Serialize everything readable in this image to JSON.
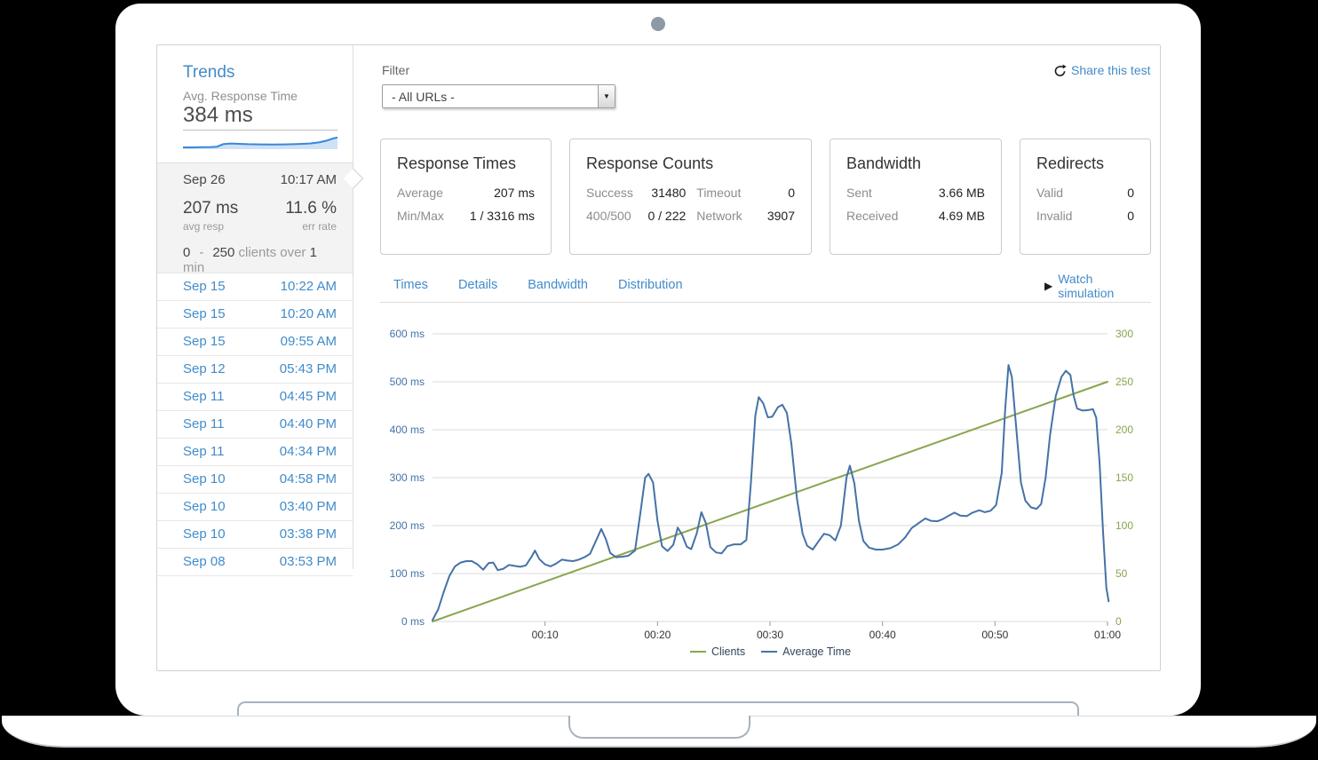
{
  "sidebar": {
    "title": "Trends",
    "metric_label": "Avg. Response Time",
    "metric_value": "384 ms",
    "selected": {
      "date": "Sep 26",
      "time": "10:17 AM",
      "avg_value": "207 ms",
      "avg_label": "avg resp",
      "err_value": "11.6 %",
      "err_label": "err rate",
      "clients_min": "0",
      "clients_dash": "-",
      "clients_max": "250",
      "clients_text": "clients over",
      "clients_num": "1",
      "clients_unit": "min"
    },
    "runs": [
      {
        "date": "Sep 15",
        "time": "10:22 AM"
      },
      {
        "date": "Sep 15",
        "time": "10:20 AM"
      },
      {
        "date": "Sep 15",
        "time": "09:55 AM"
      },
      {
        "date": "Sep 12",
        "time": "05:43 PM"
      },
      {
        "date": "Sep 11",
        "time": "04:45 PM"
      },
      {
        "date": "Sep 11",
        "time": "04:40 PM"
      },
      {
        "date": "Sep 11",
        "time": "04:34 PM"
      },
      {
        "date": "Sep 10",
        "time": "04:58 PM"
      },
      {
        "date": "Sep 10",
        "time": "03:40 PM"
      },
      {
        "date": "Sep 10",
        "time": "03:38 PM"
      },
      {
        "date": "Sep 08",
        "time": "03:53 PM"
      }
    ]
  },
  "header": {
    "filter_label": "Filter",
    "filter_value": "- All URLs -",
    "share_label": "Share this test"
  },
  "cards": {
    "response_times": {
      "title": "Response Times",
      "rows": [
        {
          "label": "Average",
          "value": "207 ms"
        },
        {
          "label": "Min/Max",
          "value": "1 / 3316 ms"
        }
      ]
    },
    "response_counts": {
      "title": "Response Counts",
      "rows": [
        {
          "label": "Success",
          "value": "31480"
        },
        {
          "label": "Timeout",
          "value": "0"
        },
        {
          "label": "400/500",
          "value": "0 / 222"
        },
        {
          "label": "Network",
          "value": "3907"
        }
      ]
    },
    "bandwidth": {
      "title": "Bandwidth",
      "rows": [
        {
          "label": "Sent",
          "value": "3.66 MB"
        },
        {
          "label": "Received",
          "value": "4.69 MB"
        }
      ]
    },
    "redirects": {
      "title": "Redirects",
      "rows": [
        {
          "label": "Valid",
          "value": "0"
        },
        {
          "label": "Invalid",
          "value": "0"
        }
      ]
    }
  },
  "tabs": [
    "Times",
    "Details",
    "Bandwidth",
    "Distribution"
  ],
  "watch_label": "Watch simulation",
  "colors": {
    "link_blue": "#428bca",
    "chart_blue": "#4572a7",
    "chart_green": "#89a54e",
    "grid": "#d9d9d9"
  },
  "sparkline": {
    "color": "#3a87d9",
    "fill": "#cfe1f4",
    "points": [
      [
        0,
        0.8
      ],
      [
        0.06,
        0.8
      ],
      [
        0.12,
        0.79
      ],
      [
        0.18,
        0.78
      ],
      [
        0.22,
        0.76
      ],
      [
        0.26,
        0.62
      ],
      [
        0.31,
        0.58
      ],
      [
        0.36,
        0.6
      ],
      [
        0.42,
        0.62
      ],
      [
        0.5,
        0.63
      ],
      [
        0.58,
        0.64
      ],
      [
        0.66,
        0.63
      ],
      [
        0.74,
        0.61
      ],
      [
        0.82,
        0.58
      ],
      [
        0.88,
        0.52
      ],
      [
        0.93,
        0.42
      ],
      [
        0.97,
        0.3
      ],
      [
        1,
        0.24
      ]
    ]
  },
  "chart_data": {
    "type": "line",
    "title": "",
    "xlabel": "",
    "x_range_minutes": [
      0,
      60
    ],
    "x_ticks": [
      {
        "minute": 10,
        "label": "00:10"
      },
      {
        "minute": 20,
        "label": "00:20"
      },
      {
        "minute": 30,
        "label": "00:30"
      },
      {
        "minute": 40,
        "label": "00:40"
      },
      {
        "minute": 50,
        "label": "00:50"
      },
      {
        "minute": 60,
        "label": "01:00"
      }
    ],
    "left_axis": {
      "unit": "ms",
      "ticks": [
        0,
        100,
        200,
        300,
        400,
        500,
        600
      ],
      "color": "#4572a7"
    },
    "right_axis": {
      "ticks": [
        0,
        50,
        100,
        150,
        200,
        250,
        300
      ],
      "color": "#89a54e"
    },
    "grid": true,
    "legend_position": "bottom",
    "series": [
      {
        "name": "Clients",
        "axis": "right",
        "color": "#89a54e",
        "points": [
          [
            0,
            0
          ],
          [
            60,
            250
          ]
        ]
      },
      {
        "name": "Average Time",
        "axis": "left",
        "color": "#4572a7",
        "points": [
          [
            0,
            3
          ],
          [
            0.5,
            25
          ],
          [
            1,
            62
          ],
          [
            1.5,
            95
          ],
          [
            2,
            115
          ],
          [
            2.5,
            123
          ],
          [
            3,
            126
          ],
          [
            3.5,
            126
          ],
          [
            4,
            119
          ],
          [
            4.5,
            108
          ],
          [
            5,
            122
          ],
          [
            5.4,
            123
          ],
          [
            5.8,
            107
          ],
          [
            6.3,
            110
          ],
          [
            6.8,
            118
          ],
          [
            7.3,
            116
          ],
          [
            7.8,
            114
          ],
          [
            8.3,
            117
          ],
          [
            8.8,
            135
          ],
          [
            9.1,
            148
          ],
          [
            9.5,
            130
          ],
          [
            10,
            119
          ],
          [
            10.5,
            115
          ],
          [
            11,
            121
          ],
          [
            11.5,
            129
          ],
          [
            12,
            127
          ],
          [
            12.5,
            126
          ],
          [
            13,
            129
          ],
          [
            13.5,
            134
          ],
          [
            14,
            141
          ],
          [
            14.5,
            167
          ],
          [
            15,
            193
          ],
          [
            15.4,
            172
          ],
          [
            15.8,
            143
          ],
          [
            16.3,
            134
          ],
          [
            16.8,
            135
          ],
          [
            17.4,
            137
          ],
          [
            18,
            148
          ],
          [
            18.5,
            230
          ],
          [
            18.9,
            300
          ],
          [
            19.2,
            308
          ],
          [
            19.6,
            290
          ],
          [
            20,
            210
          ],
          [
            20.4,
            157
          ],
          [
            20.9,
            147
          ],
          [
            21.4,
            160
          ],
          [
            21.8,
            196
          ],
          [
            22.2,
            180
          ],
          [
            22.6,
            156
          ],
          [
            23,
            151
          ],
          [
            23.5,
            185
          ],
          [
            23.9,
            228
          ],
          [
            24.3,
            205
          ],
          [
            24.7,
            155
          ],
          [
            25.2,
            144
          ],
          [
            25.7,
            142
          ],
          [
            26.2,
            157
          ],
          [
            26.8,
            161
          ],
          [
            27.4,
            161
          ],
          [
            27.9,
            170
          ],
          [
            28.3,
            290
          ],
          [
            28.7,
            430
          ],
          [
            29,
            468
          ],
          [
            29.4,
            455
          ],
          [
            29.8,
            426
          ],
          [
            30.2,
            427
          ],
          [
            30.7,
            447
          ],
          [
            31.1,
            452
          ],
          [
            31.5,
            435
          ],
          [
            31.9,
            370
          ],
          [
            32.4,
            255
          ],
          [
            32.9,
            183
          ],
          [
            33.3,
            158
          ],
          [
            33.8,
            150
          ],
          [
            34.3,
            167
          ],
          [
            34.8,
            183
          ],
          [
            35.3,
            180
          ],
          [
            35.8,
            169
          ],
          [
            36.3,
            200
          ],
          [
            36.8,
            300
          ],
          [
            37.1,
            325
          ],
          [
            37.5,
            288
          ],
          [
            37.9,
            210
          ],
          [
            38.3,
            168
          ],
          [
            38.8,
            154
          ],
          [
            39.4,
            150
          ],
          [
            40,
            150
          ],
          [
            40.7,
            153
          ],
          [
            41.4,
            161
          ],
          [
            42,
            175
          ],
          [
            42.6,
            195
          ],
          [
            43.2,
            205
          ],
          [
            43.8,
            215
          ],
          [
            44.3,
            210
          ],
          [
            44.9,
            209
          ],
          [
            45.4,
            214
          ],
          [
            45.9,
            221
          ],
          [
            46.4,
            227
          ],
          [
            46.9,
            221
          ],
          [
            47.5,
            220
          ],
          [
            48,
            227
          ],
          [
            48.6,
            232
          ],
          [
            49.1,
            228
          ],
          [
            49.6,
            231
          ],
          [
            50.1,
            243
          ],
          [
            50.6,
            310
          ],
          [
            50.9,
            440
          ],
          [
            51.2,
            535
          ],
          [
            51.5,
            510
          ],
          [
            51.9,
            400
          ],
          [
            52.3,
            290
          ],
          [
            52.7,
            252
          ],
          [
            53.2,
            238
          ],
          [
            53.7,
            235
          ],
          [
            54.1,
            245
          ],
          [
            54.5,
            300
          ],
          [
            54.9,
            390
          ],
          [
            55.4,
            470
          ],
          [
            55.9,
            510
          ],
          [
            56.3,
            523
          ],
          [
            56.7,
            514
          ],
          [
            57,
            470
          ],
          [
            57.3,
            444
          ],
          [
            57.8,
            440
          ],
          [
            58.3,
            441
          ],
          [
            58.7,
            443
          ],
          [
            59,
            425
          ],
          [
            59.3,
            330
          ],
          [
            59.6,
            190
          ],
          [
            59.9,
            70
          ],
          [
            60.1,
            42
          ]
        ]
      }
    ]
  }
}
